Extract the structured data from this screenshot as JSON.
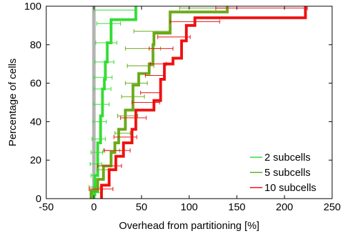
{
  "chart_data": {
    "type": "line",
    "plot_style": "step CDF with horizontal error bars",
    "title": "",
    "xlabel": "Overhead from partitioning [%]",
    "ylabel": "Percentage of cells",
    "xlim": [
      -50,
      250
    ],
    "ylim": [
      0,
      100
    ],
    "xticks": [
      -50,
      0,
      50,
      100,
      150,
      200,
      250
    ],
    "yticks": [
      0,
      20,
      40,
      60,
      80,
      100
    ],
    "grid": false,
    "legend_position": "bottom-right",
    "reference_line": {
      "x": 0,
      "color": "#b3b3b3"
    },
    "series": [
      {
        "name": "2 subcells",
        "color": "#33dd33",
        "steps": [
          {
            "x": -1,
            "y0": 0,
            "y1": 2
          },
          {
            "x": 1,
            "y0": 2,
            "y1": 12
          },
          {
            "x": 4,
            "y0": 12,
            "y1": 29
          },
          {
            "x": 7,
            "y0": 29,
            "y1": 43
          },
          {
            "x": 9,
            "y0": 43,
            "y1": 57
          },
          {
            "x": 11,
            "y0": 57,
            "y1": 62
          },
          {
            "x": 12,
            "y0": 62,
            "y1": 71
          },
          {
            "x": 14,
            "y0": 71,
            "y1": 81
          },
          {
            "x": 18,
            "y0": 81,
            "y1": 93
          },
          {
            "x": 44,
            "y0": 93,
            "y1": 100
          }
        ],
        "error_bars": [
          {
            "y": 3,
            "lo": -2,
            "hi": 7
          },
          {
            "y": 12,
            "lo": -3,
            "hi": 5
          },
          {
            "y": 18,
            "lo": -4,
            "hi": 8
          },
          {
            "y": 24,
            "lo": -3,
            "hi": 9
          },
          {
            "y": 31,
            "lo": -2,
            "hi": 12
          },
          {
            "y": 40,
            "lo": -1,
            "hi": 13
          },
          {
            "y": 49,
            "lo": 0,
            "hi": 16
          },
          {
            "y": 57,
            "lo": 0,
            "hi": 18
          },
          {
            "y": 63,
            "lo": 0,
            "hi": 19
          },
          {
            "y": 71,
            "lo": 1,
            "hi": 21
          },
          {
            "y": 81,
            "lo": 2,
            "hi": 24
          },
          {
            "y": 91,
            "lo": 3,
            "hi": 28
          },
          {
            "y": 98,
            "lo": 0,
            "hi": 44
          }
        ]
      },
      {
        "name": "5 subcells",
        "color": "#6aaa1a",
        "steps": [
          {
            "x": -3,
            "y0": 0,
            "y1": 4
          },
          {
            "x": 4,
            "y0": 4,
            "y1": 10
          },
          {
            "x": 10,
            "y0": 10,
            "y1": 17
          },
          {
            "x": 18,
            "y0": 17,
            "y1": 24
          },
          {
            "x": 22,
            "y0": 24,
            "y1": 29
          },
          {
            "x": 26,
            "y0": 29,
            "y1": 36
          },
          {
            "x": 33,
            "y0": 36,
            "y1": 46
          },
          {
            "x": 41,
            "y0": 46,
            "y1": 59
          },
          {
            "x": 47,
            "y0": 59,
            "y1": 65
          },
          {
            "x": 58,
            "y0": 65,
            "y1": 70
          },
          {
            "x": 62,
            "y0": 70,
            "y1": 80
          },
          {
            "x": 63,
            "y0": 80,
            "y1": 86
          },
          {
            "x": 80,
            "y0": 86,
            "y1": 97
          },
          {
            "x": 140,
            "y0": 97,
            "y1": 100
          }
        ],
        "error_bars": [
          {
            "y": 6,
            "lo": -5,
            "hi": 9
          },
          {
            "y": 15,
            "lo": 3,
            "hi": 17
          },
          {
            "y": 25,
            "lo": 10,
            "hi": 27
          },
          {
            "y": 34,
            "lo": 22,
            "hi": 38
          },
          {
            "y": 43,
            "lo": 25,
            "hi": 46
          },
          {
            "y": 53,
            "lo": 29,
            "hi": 53
          },
          {
            "y": 60,
            "lo": 33,
            "hi": 56
          },
          {
            "y": 69,
            "lo": 35,
            "hi": 63
          },
          {
            "y": 78,
            "lo": 33,
            "hi": 70
          },
          {
            "y": 87,
            "lo": 42,
            "hi": 80
          },
          {
            "y": 99,
            "lo": 90,
            "hi": 140
          }
        ]
      },
      {
        "name": "10 subcells",
        "color": "#ee1111",
        "steps": [
          {
            "x": 8,
            "y0": 0,
            "y1": 7
          },
          {
            "x": 16,
            "y0": 7,
            "y1": 15
          },
          {
            "x": 23,
            "y0": 15,
            "y1": 22
          },
          {
            "x": 31,
            "y0": 22,
            "y1": 29
          },
          {
            "x": 40,
            "y0": 29,
            "y1": 36
          },
          {
            "x": 44,
            "y0": 36,
            "y1": 46
          },
          {
            "x": 63,
            "y0": 46,
            "y1": 51
          },
          {
            "x": 70,
            "y0": 51,
            "y1": 62
          },
          {
            "x": 74,
            "y0": 62,
            "y1": 70
          },
          {
            "x": 83,
            "y0": 70,
            "y1": 73
          },
          {
            "x": 92,
            "y0": 73,
            "y1": 82
          },
          {
            "x": 97,
            "y0": 82,
            "y1": 90
          },
          {
            "x": 106,
            "y0": 90,
            "y1": 94
          },
          {
            "x": 222,
            "y0": 94,
            "y1": 100
          }
        ],
        "error_bars": [
          {
            "y": 5,
            "lo": -5,
            "hi": 20
          },
          {
            "y": 17,
            "lo": 4,
            "hi": 29
          },
          {
            "y": 25,
            "lo": 11,
            "hi": 38
          },
          {
            "y": 32,
            "lo": 21,
            "hi": 45
          },
          {
            "y": 42,
            "lo": 28,
            "hi": 55
          },
          {
            "y": 50,
            "lo": 40,
            "hi": 69
          },
          {
            "y": 55,
            "lo": 49,
            "hi": 69
          },
          {
            "y": 64,
            "lo": 54,
            "hi": 73
          },
          {
            "y": 70,
            "lo": 59,
            "hi": 76
          },
          {
            "y": 78,
            "lo": 58,
            "hi": 83
          },
          {
            "y": 84,
            "lo": 67,
            "hi": 101
          },
          {
            "y": 92,
            "lo": 80,
            "hi": 132
          },
          {
            "y": 99,
            "lo": 128,
            "hi": 224
          }
        ]
      }
    ]
  }
}
